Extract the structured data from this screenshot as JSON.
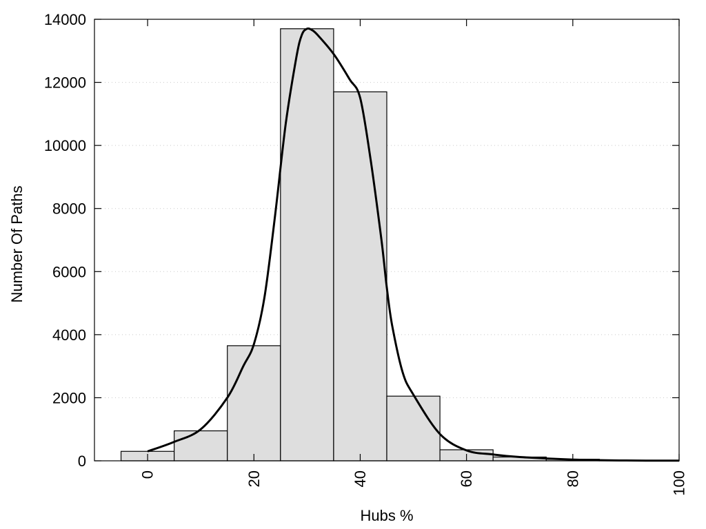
{
  "chart_data": {
    "type": "bar",
    "xlabel": "Hubs %",
    "ylabel": "Number Of Paths",
    "xlim": [
      -10,
      100
    ],
    "ylim": [
      0,
      14000
    ],
    "x_ticks": [
      0,
      20,
      40,
      60,
      80,
      100
    ],
    "y_ticks": [
      0,
      2000,
      4000,
      6000,
      8000,
      10000,
      12000,
      14000
    ],
    "grid": "horizontal-dotted",
    "bin_width": 10,
    "bins": [
      {
        "center": 0,
        "value": 300
      },
      {
        "center": 10,
        "value": 950
      },
      {
        "center": 20,
        "value": 3650
      },
      {
        "center": 30,
        "value": 13700
      },
      {
        "center": 40,
        "value": 11700
      },
      {
        "center": 50,
        "value": 2050
      },
      {
        "center": 60,
        "value": 350
      },
      {
        "center": 70,
        "value": 120
      },
      {
        "center": 80,
        "value": 50
      },
      {
        "center": 90,
        "value": 20
      },
      {
        "center": 100,
        "value": 5
      }
    ],
    "curve": {
      "x": [
        0,
        5,
        10,
        15,
        18,
        20,
        22,
        24,
        26,
        28,
        29,
        30,
        31,
        32,
        35,
        38,
        40,
        42,
        44,
        45,
        46,
        48,
        50,
        55,
        60,
        65,
        70,
        80,
        90,
        100
      ],
      "y": [
        300,
        600,
        1000,
        2000,
        3000,
        3700,
        5200,
        7800,
        10700,
        12800,
        13500,
        13700,
        13650,
        13500,
        12900,
        12100,
        11500,
        9500,
        7000,
        5500,
        4300,
        2800,
        2100,
        850,
        330,
        200,
        120,
        40,
        10,
        5
      ]
    }
  }
}
